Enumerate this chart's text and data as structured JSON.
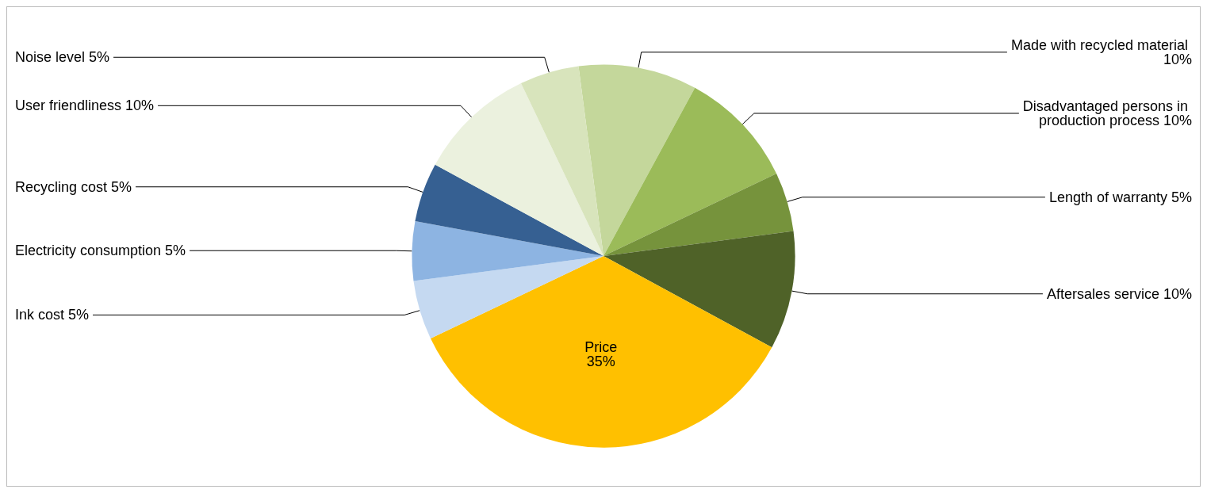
{
  "chart_data": {
    "type": "pie",
    "categories": [
      "Made with recycled material",
      "Disadvantaged persons in production process",
      "Length of warranty",
      "Aftersales service",
      "Price",
      "Ink cost",
      "Electricity consumption",
      "Recycling cost",
      "User friendliness",
      "Noise level"
    ],
    "values": [
      10,
      10,
      5,
      10,
      35,
      5,
      5,
      5,
      10,
      5
    ],
    "colors": [
      "#c4d79b",
      "#9bbb59",
      "#76933c",
      "#4f6228",
      "#ffc000",
      "#c5d9f1",
      "#8db4e2",
      "#366092",
      "#ebf1de",
      "#d8e4bc"
    ],
    "value_labels": [
      "10%",
      "10%",
      "5%",
      "10%",
      "35%",
      "5%",
      "5%",
      "5%",
      "10%",
      "5%"
    ],
    "legend": false
  }
}
